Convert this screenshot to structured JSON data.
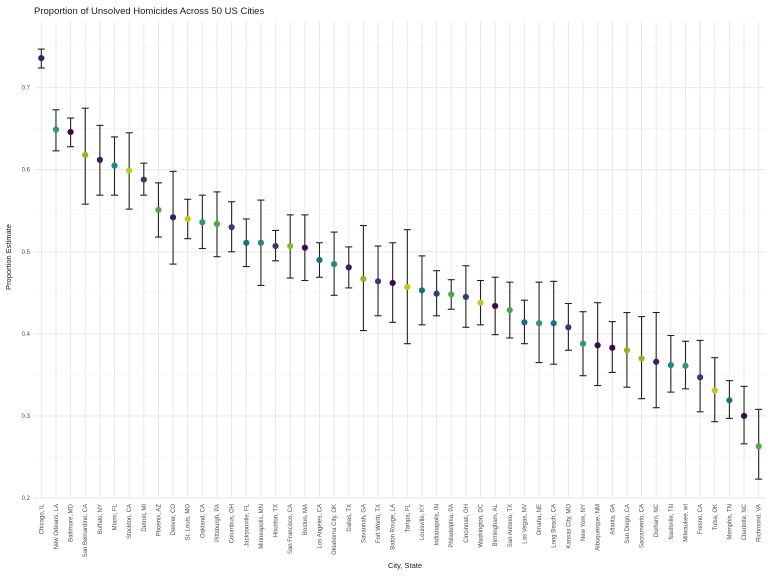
{
  "chart_data": {
    "type": "scatter",
    "title": "Proportion of Unsolved Homicides Across 50 US Cities",
    "xlabel": "City, State",
    "ylabel": "Proportion Estimate",
    "ylim": [
      0.2,
      0.78
    ],
    "yticks": [
      0.2,
      0.3,
      0.4,
      0.5,
      0.6,
      0.7
    ],
    "grid": true,
    "legend": "none",
    "error_bars": true,
    "points": [
      {
        "city": "Chicago, IL",
        "estimate": 0.736,
        "lower": 0.724,
        "upper": 0.747,
        "color": "#2f2566"
      },
      {
        "city": "New Orleans, LA",
        "estimate": 0.649,
        "lower": 0.623,
        "upper": 0.673,
        "color": "#2f9a68"
      },
      {
        "city": "Baltimore, MD",
        "estimate": 0.646,
        "lower": 0.628,
        "upper": 0.663,
        "color": "#3b0a45"
      },
      {
        "city": "San Bernardino, CA",
        "estimate": 0.618,
        "lower": 0.558,
        "upper": 0.675,
        "color": "#8db724"
      },
      {
        "city": "Buffalo, NY",
        "estimate": 0.612,
        "lower": 0.569,
        "upper": 0.654,
        "color": "#2f2566"
      },
      {
        "city": "Miami, FL",
        "estimate": 0.605,
        "lower": 0.569,
        "upper": 0.64,
        "color": "#1f8a7e"
      },
      {
        "city": "Stockton, CA",
        "estimate": 0.599,
        "lower": 0.552,
        "upper": 0.645,
        "color": "#c9c31c"
      },
      {
        "city": "Detroit, MI",
        "estimate": 0.588,
        "lower": 0.569,
        "upper": 0.608,
        "color": "#2c3f6e"
      },
      {
        "city": "Phoenix, AZ",
        "estimate": 0.551,
        "lower": 0.518,
        "upper": 0.584,
        "color": "#4ea845"
      },
      {
        "city": "Denver, CO",
        "estimate": 0.542,
        "lower": 0.485,
        "upper": 0.598,
        "color": "#2f2566"
      },
      {
        "city": "St. Louis, MO",
        "estimate": 0.54,
        "lower": 0.516,
        "upper": 0.564,
        "color": "#c9c31c"
      },
      {
        "city": "Oakland, CA",
        "estimate": 0.536,
        "lower": 0.504,
        "upper": 0.569,
        "color": "#2f9a68"
      },
      {
        "city": "Pittsburgh, PA",
        "estimate": 0.534,
        "lower": 0.494,
        "upper": 0.573,
        "color": "#4ea845"
      },
      {
        "city": "Columbus, OH",
        "estimate": 0.53,
        "lower": 0.5,
        "upper": 0.561,
        "color": "#2c3f6e"
      },
      {
        "city": "Jacksonville, FL",
        "estimate": 0.511,
        "lower": 0.482,
        "upper": 0.54,
        "color": "#1f6f7a"
      },
      {
        "city": "Minneapolis, MN",
        "estimate": 0.511,
        "lower": 0.459,
        "upper": 0.563,
        "color": "#1f8a7e"
      },
      {
        "city": "Houston, TX",
        "estimate": 0.507,
        "lower": 0.489,
        "upper": 0.526,
        "color": "#2c3f6e"
      },
      {
        "city": "San Francisco, CA",
        "estimate": 0.507,
        "lower": 0.468,
        "upper": 0.545,
        "color": "#8db724"
      },
      {
        "city": "Boston, MA",
        "estimate": 0.505,
        "lower": 0.465,
        "upper": 0.545,
        "color": "#3b0a45"
      },
      {
        "city": "Los Angeles, CA",
        "estimate": 0.49,
        "lower": 0.469,
        "upper": 0.511,
        "color": "#1f6f7a"
      },
      {
        "city": "Oklahoma City, OK",
        "estimate": 0.485,
        "lower": 0.447,
        "upper": 0.524,
        "color": "#1f8a7e"
      },
      {
        "city": "Dallas, TX",
        "estimate": 0.481,
        "lower": 0.456,
        "upper": 0.506,
        "color": "#2f2566"
      },
      {
        "city": "Savannah, GA",
        "estimate": 0.467,
        "lower": 0.404,
        "upper": 0.532,
        "color": "#8db724"
      },
      {
        "city": "Fort Worth, TX",
        "estimate": 0.464,
        "lower": 0.422,
        "upper": 0.507,
        "color": "#2c3f6e"
      },
      {
        "city": "Baton Rouge, LA",
        "estimate": 0.462,
        "lower": 0.414,
        "upper": 0.511,
        "color": "#3b0a45"
      },
      {
        "city": "Tampa, FL",
        "estimate": 0.457,
        "lower": 0.388,
        "upper": 0.527,
        "color": "#c9c31c"
      },
      {
        "city": "Louisville, KY",
        "estimate": 0.453,
        "lower": 0.411,
        "upper": 0.495,
        "color": "#1f6f7a"
      },
      {
        "city": "Indianapolis, IN",
        "estimate": 0.449,
        "lower": 0.422,
        "upper": 0.477,
        "color": "#2c3f6e"
      },
      {
        "city": "Philadelphia, PA",
        "estimate": 0.448,
        "lower": 0.43,
        "upper": 0.466,
        "color": "#4ea845"
      },
      {
        "city": "Cincinnati, OH",
        "estimate": 0.445,
        "lower": 0.408,
        "upper": 0.483,
        "color": "#2c3f6e"
      },
      {
        "city": "Washington, DC",
        "estimate": 0.438,
        "lower": 0.411,
        "upper": 0.465,
        "color": "#c9c31c"
      },
      {
        "city": "Birmingham, AL",
        "estimate": 0.434,
        "lower": 0.399,
        "upper": 0.469,
        "color": "#3b0a45"
      },
      {
        "city": "San Antonio, TX",
        "estimate": 0.429,
        "lower": 0.395,
        "upper": 0.463,
        "color": "#4ea845"
      },
      {
        "city": "Las Vegas, NV",
        "estimate": 0.414,
        "lower": 0.388,
        "upper": 0.441,
        "color": "#1f6f7a"
      },
      {
        "city": "Omaha, NE",
        "estimate": 0.413,
        "lower": 0.365,
        "upper": 0.463,
        "color": "#2f9a68"
      },
      {
        "city": "Long Beach, CA",
        "estimate": 0.413,
        "lower": 0.363,
        "upper": 0.464,
        "color": "#1f6f7a"
      },
      {
        "city": "Kansas City, MO",
        "estimate": 0.408,
        "lower": 0.38,
        "upper": 0.437,
        "color": "#2c3f6e"
      },
      {
        "city": "New York, NY",
        "estimate": 0.388,
        "lower": 0.349,
        "upper": 0.427,
        "color": "#2f9a68"
      },
      {
        "city": "Albuquerque, NM",
        "estimate": 0.386,
        "lower": 0.337,
        "upper": 0.438,
        "color": "#3b0a45"
      },
      {
        "city": "Atlanta, GA",
        "estimate": 0.383,
        "lower": 0.353,
        "upper": 0.415,
        "color": "#3b0a45"
      },
      {
        "city": "San Diego, CA",
        "estimate": 0.38,
        "lower": 0.335,
        "upper": 0.426,
        "color": "#8db724"
      },
      {
        "city": "Sacramento, CA",
        "estimate": 0.37,
        "lower": 0.321,
        "upper": 0.421,
        "color": "#8db724"
      },
      {
        "city": "Durham, NC",
        "estimate": 0.366,
        "lower": 0.31,
        "upper": 0.426,
        "color": "#2f2566"
      },
      {
        "city": "Nashville, TN",
        "estimate": 0.362,
        "lower": 0.329,
        "upper": 0.398,
        "color": "#1f8a7e"
      },
      {
        "city": "Milwaukee, wI",
        "estimate": 0.361,
        "lower": 0.333,
        "upper": 0.391,
        "color": "#2f9a68"
      },
      {
        "city": "Fresno, CA",
        "estimate": 0.347,
        "lower": 0.305,
        "upper": 0.392,
        "color": "#2c3f6e"
      },
      {
        "city": "Tulsa, OK",
        "estimate": 0.331,
        "lower": 0.293,
        "upper": 0.371,
        "color": "#c9c31c"
      },
      {
        "city": "Memphis, TN",
        "estimate": 0.319,
        "lower": 0.297,
        "upper": 0.343,
        "color": "#1f6f7a"
      },
      {
        "city": "Charlotte, NC",
        "estimate": 0.3,
        "lower": 0.266,
        "upper": 0.336,
        "color": "#3b0a45"
      },
      {
        "city": "Richmond, VA",
        "estimate": 0.263,
        "lower": 0.223,
        "upper": 0.308,
        "color": "#4ea845"
      }
    ]
  }
}
